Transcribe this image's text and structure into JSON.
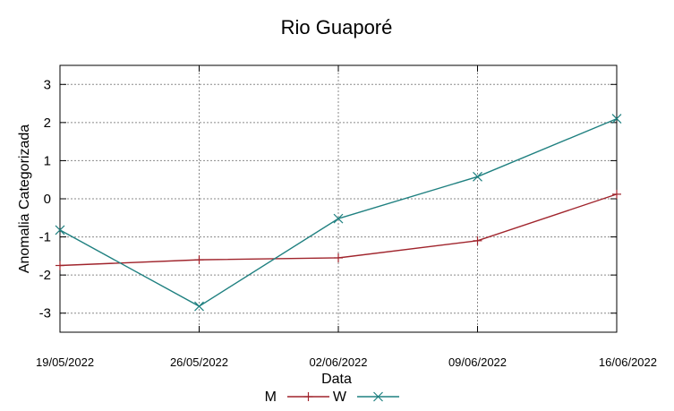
{
  "chart_data": {
    "type": "line",
    "title": "Rio Guaporé",
    "xlabel": "Data",
    "ylabel": "Anomalia Categorizada",
    "categories": [
      "19/05/2022",
      "26/05/2022",
      "02/06/2022",
      "09/06/2022",
      "16/06/2022"
    ],
    "ylim": [
      -3.5,
      3.5
    ],
    "yticks": [
      -3,
      -2,
      -1,
      0,
      1,
      2,
      3
    ],
    "ytick_labels": [
      "-3",
      "-2",
      "-1",
      "0",
      "1",
      "2",
      "3"
    ],
    "grid": true,
    "legend_position": "bottom",
    "series": [
      {
        "name": "M",
        "marker": "plus",
        "color": "#a0242c",
        "values": [
          -1.75,
          -1.6,
          -1.55,
          -1.1,
          0.12
        ]
      },
      {
        "name": "W",
        "marker": "x",
        "color": "#1f8080",
        "values": [
          -0.82,
          -2.82,
          -0.52,
          0.58,
          2.1
        ]
      }
    ]
  }
}
